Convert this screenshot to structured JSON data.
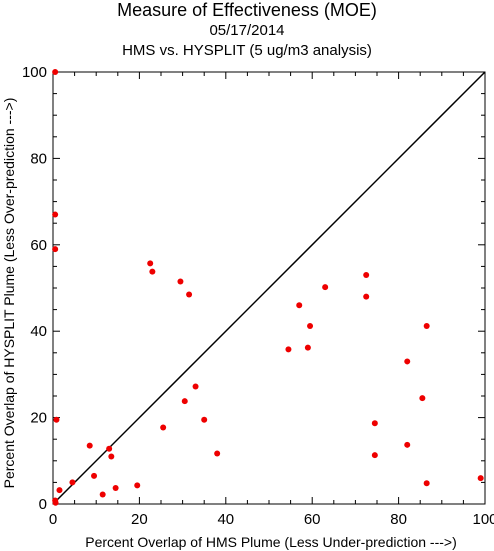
{
  "header": {
    "title": "Measure of Effectiveness (MOE)",
    "date": "05/17/2014",
    "subtitle": "HMS vs. HYSPLIT  (5 ug/m3 analysis)"
  },
  "chart_data": {
    "type": "scatter",
    "xlabel": "Percent Overlap of HMS Plume (Less Under-prediction --->)",
    "ylabel": "Percent Overlap of HYSPLIT Plume (Less Over-prediction --->)",
    "xlim": [
      0,
      100
    ],
    "ylim": [
      0,
      100
    ],
    "xticks": [
      0,
      20,
      40,
      60,
      80,
      100
    ],
    "yticks": [
      0,
      20,
      40,
      60,
      80,
      100
    ],
    "grid": false,
    "reference_line": "y = x",
    "point_color": "#ee0000",
    "points": [
      [
        0.5,
        100
      ],
      [
        0.5,
        67
      ],
      [
        0.5,
        59
      ],
      [
        0.8,
        19.5
      ],
      [
        0.5,
        0.8
      ],
      [
        0.6,
        0.3
      ],
      [
        1.5,
        3.2
      ],
      [
        4.5,
        5
      ],
      [
        8.5,
        13.5
      ],
      [
        9.5,
        6.5
      ],
      [
        11.5,
        2.2
      ],
      [
        13,
        12.8
      ],
      [
        13.5,
        11
      ],
      [
        14.5,
        3.7
      ],
      [
        19.5,
        4.3
      ],
      [
        22.5,
        55.7
      ],
      [
        23,
        53.8
      ],
      [
        25.5,
        17.7
      ],
      [
        29.5,
        51.5
      ],
      [
        30.5,
        23.8
      ],
      [
        31.5,
        48.5
      ],
      [
        33,
        27.2
      ],
      [
        35,
        19.5
      ],
      [
        38,
        11.7
      ],
      [
        54.5,
        35.8
      ],
      [
        57,
        46
      ],
      [
        59,
        36.2
      ],
      [
        59.5,
        41.2
      ],
      [
        63,
        50.2
      ],
      [
        72.5,
        53
      ],
      [
        72.5,
        48
      ],
      [
        74.5,
        18.7
      ],
      [
        74.5,
        11.3
      ],
      [
        82,
        33
      ],
      [
        82,
        13.7
      ],
      [
        85.5,
        24.5
      ],
      [
        86.5,
        41.2
      ],
      [
        86.5,
        4.8
      ],
      [
        99,
        6
      ]
    ]
  }
}
